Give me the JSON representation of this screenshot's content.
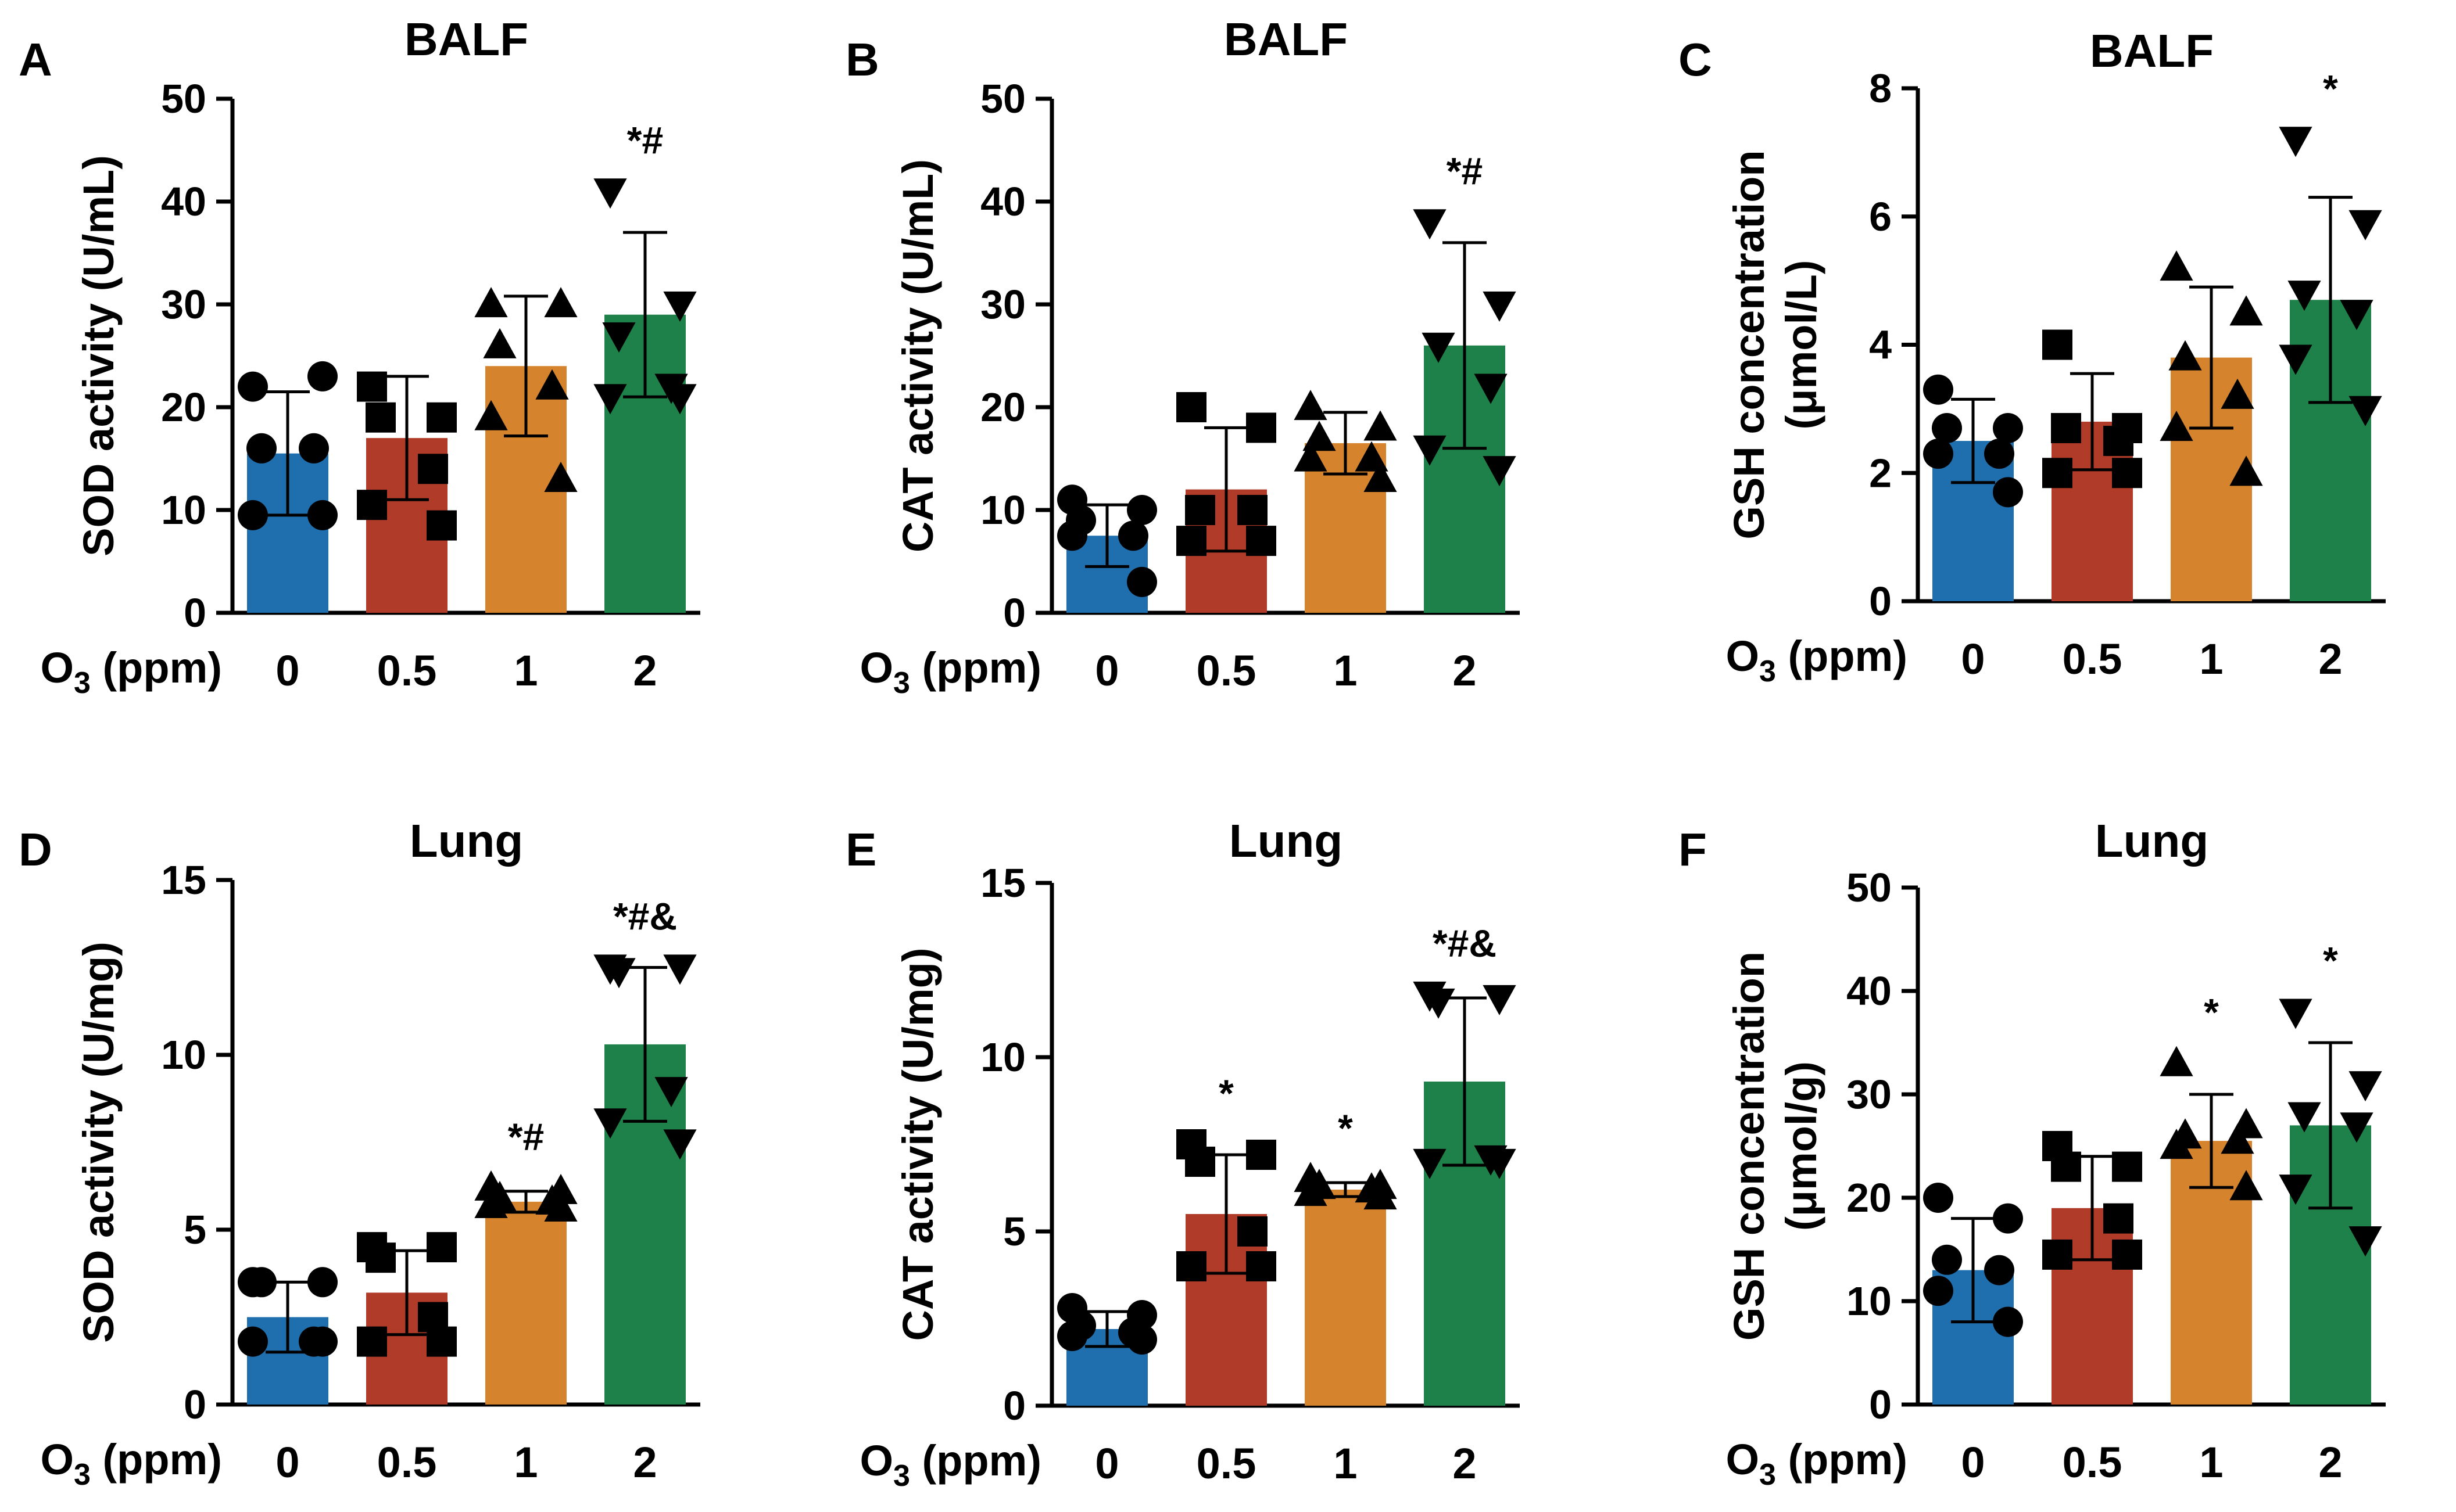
{
  "chart_data": [
    {
      "panel": "A",
      "title": "BALF",
      "type": "bar",
      "ylabel": "SOD activity (U/mL)",
      "xlabel_prefix": "O",
      "xlabel_sub": "3",
      "xlabel_suffix": " (ppm)",
      "categories": [
        "0",
        "0.5",
        "1",
        "2"
      ],
      "ylim": [
        0,
        50
      ],
      "yticks": [
        "0",
        "10",
        "20",
        "30",
        "40",
        "50"
      ],
      "values": [
        15.5,
        17,
        24,
        29
      ],
      "sd": [
        6,
        6,
        6.8,
        8
      ],
      "points": [
        [
          22,
          23,
          16,
          16,
          9.5,
          9.5
        ],
        [
          22,
          19,
          19,
          14,
          10.5,
          8.5
        ],
        [
          30,
          30,
          26,
          22,
          19,
          13
        ],
        [
          41,
          30,
          27,
          22,
          21,
          21
        ]
      ],
      "markers": [
        "circle",
        "square",
        "triangle-up",
        "triangle-down"
      ],
      "significance": [
        "",
        "",
        "",
        "*#"
      ],
      "colors": [
        "#1f6fae",
        "#b13b29",
        "#d6832e",
        "#1e8149"
      ]
    },
    {
      "panel": "B",
      "title": "BALF",
      "type": "bar",
      "ylabel": "CAT activity (U/mL)",
      "xlabel_prefix": "O",
      "xlabel_sub": "3",
      "xlabel_suffix": " (ppm)",
      "categories": [
        "0",
        "0.5",
        "1",
        "2"
      ],
      "ylim": [
        0,
        50
      ],
      "yticks": [
        "0",
        "10",
        "20",
        "30",
        "40",
        "50"
      ],
      "values": [
        7.5,
        12,
        16.5,
        26
      ],
      "sd": [
        3,
        6,
        3,
        10
      ],
      "points": [
        [
          11,
          10,
          9,
          7.5,
          7.5,
          3
        ],
        [
          20,
          18,
          10,
          10,
          7,
          7
        ],
        [
          20,
          18,
          17,
          15,
          15,
          13
        ],
        [
          38,
          30,
          26,
          22,
          16,
          14
        ]
      ],
      "markers": [
        "circle",
        "square",
        "triangle-up",
        "triangle-down"
      ],
      "significance": [
        "",
        "",
        "",
        "*#"
      ],
      "colors": [
        "#1f6fae",
        "#b13b29",
        "#d6832e",
        "#1e8149"
      ]
    },
    {
      "panel": "C",
      "title": "BALF",
      "type": "bar",
      "ylabel": "GSH  concentration",
      "ylabel2": "(μmol/L)",
      "xlabel_prefix": "O",
      "xlabel_sub": "3",
      "xlabel_suffix": " (ppm)",
      "categories": [
        "0",
        "0.5",
        "1",
        "2"
      ],
      "ylim": [
        0,
        8
      ],
      "yticks": [
        "0",
        "2",
        "4",
        "6",
        "8"
      ],
      "values": [
        2.5,
        2.8,
        3.8,
        4.7
      ],
      "sd": [
        0.65,
        0.75,
        1.1,
        1.6
      ],
      "points": [
        [
          3.3,
          2.7,
          2.7,
          2.3,
          2.3,
          1.7
        ],
        [
          4,
          2.7,
          2.7,
          2.5,
          2,
          2
        ],
        [
          5.2,
          4.5,
          3.8,
          3.2,
          2.7,
          2
        ],
        [
          7.2,
          5.9,
          4.8,
          4.5,
          3.8,
          3
        ]
      ],
      "markers": [
        "circle",
        "square",
        "triangle-up",
        "triangle-down"
      ],
      "significance": [
        "",
        "",
        "",
        "*"
      ],
      "colors": [
        "#1f6fae",
        "#b13b29",
        "#d6832e",
        "#1e8149"
      ]
    },
    {
      "panel": "D",
      "title": "Lung",
      "type": "bar",
      "ylabel": "SOD activity (U/mg)",
      "xlabel_prefix": "O",
      "xlabel_sub": "3",
      "xlabel_suffix": " (ppm)",
      "categories": [
        "0",
        "0.5",
        "1",
        "2"
      ],
      "ylim": [
        0,
        15
      ],
      "yticks": [
        "0",
        "5",
        "10",
        "15"
      ],
      "values": [
        2.5,
        3.2,
        5.8,
        10.3
      ],
      "sd": [
        1,
        1.2,
        0.3,
        2.2
      ],
      "points": [
        [
          3.5,
          3.5,
          3.5,
          1.8,
          1.8,
          1.8
        ],
        [
          4.5,
          4.5,
          4.2,
          2.5,
          1.8,
          1.8
        ],
        [
          6.2,
          6.1,
          5.9,
          5.8,
          5.7,
          5.6
        ],
        [
          12.5,
          12.5,
          12.4,
          9,
          8.1,
          7.5
        ]
      ],
      "markers": [
        "circle",
        "square",
        "triangle-up",
        "triangle-down"
      ],
      "significance": [
        "",
        "",
        "*#",
        "*#&"
      ],
      "colors": [
        "#1f6fae",
        "#b13b29",
        "#d6832e",
        "#1e8149"
      ]
    },
    {
      "panel": "E",
      "title": "Lung",
      "type": "bar",
      "ylabel": "CAT activity (U/mg)",
      "xlabel_prefix": "O",
      "xlabel_sub": "3",
      "xlabel_suffix": " (ppm)",
      "categories": [
        "0",
        "0.5",
        "1",
        "2"
      ],
      "ylim": [
        0,
        15
      ],
      "yticks": [
        "0",
        "5",
        "10",
        "15"
      ],
      "values": [
        2.2,
        5.5,
        6.2,
        9.3
      ],
      "sd": [
        0.5,
        1.7,
        0.2,
        2.4
      ],
      "points": [
        [
          2.8,
          2.6,
          2.3,
          2.1,
          2,
          1.9
        ],
        [
          7.5,
          7.2,
          7,
          5,
          4,
          4
        ],
        [
          6.5,
          6.3,
          6.3,
          6.2,
          6.1,
          6
        ],
        [
          11.8,
          11.7,
          11.6,
          7.1,
          7,
          7
        ]
      ],
      "markers": [
        "circle",
        "square",
        "triangle-up",
        "triangle-down"
      ],
      "significance": [
        "",
        "*",
        "*",
        "*#&"
      ],
      "colors": [
        "#1f6fae",
        "#b13b29",
        "#d6832e",
        "#1e8149"
      ]
    },
    {
      "panel": "F",
      "title": "Lung",
      "type": "bar",
      "ylabel": "GSH  concentration",
      "ylabel2": "(μmol/g)",
      "xlabel_prefix": "O",
      "xlabel_sub": "3",
      "xlabel_suffix": " (ppm)",
      "categories": [
        "0",
        "0.5",
        "1",
        "2"
      ],
      "ylim": [
        0,
        50
      ],
      "yticks": [
        "0",
        "10",
        "20",
        "30",
        "40",
        "50"
      ],
      "values": [
        13,
        19,
        25.5,
        27
      ],
      "sd": [
        5,
        5,
        4.5,
        8
      ],
      "points": [
        [
          20,
          18,
          14,
          13,
          11,
          8
        ],
        [
          25,
          23,
          23,
          18,
          14.5,
          14.5
        ],
        [
          33,
          27,
          26,
          25.5,
          25,
          21
        ],
        [
          38,
          31,
          28,
          27,
          21,
          16
        ]
      ],
      "markers": [
        "circle",
        "square",
        "triangle-up",
        "triangle-down"
      ],
      "significance": [
        "",
        "",
        "*",
        "*"
      ],
      "colors": [
        "#1f6fae",
        "#b13b29",
        "#d6832e",
        "#1e8149"
      ]
    }
  ]
}
